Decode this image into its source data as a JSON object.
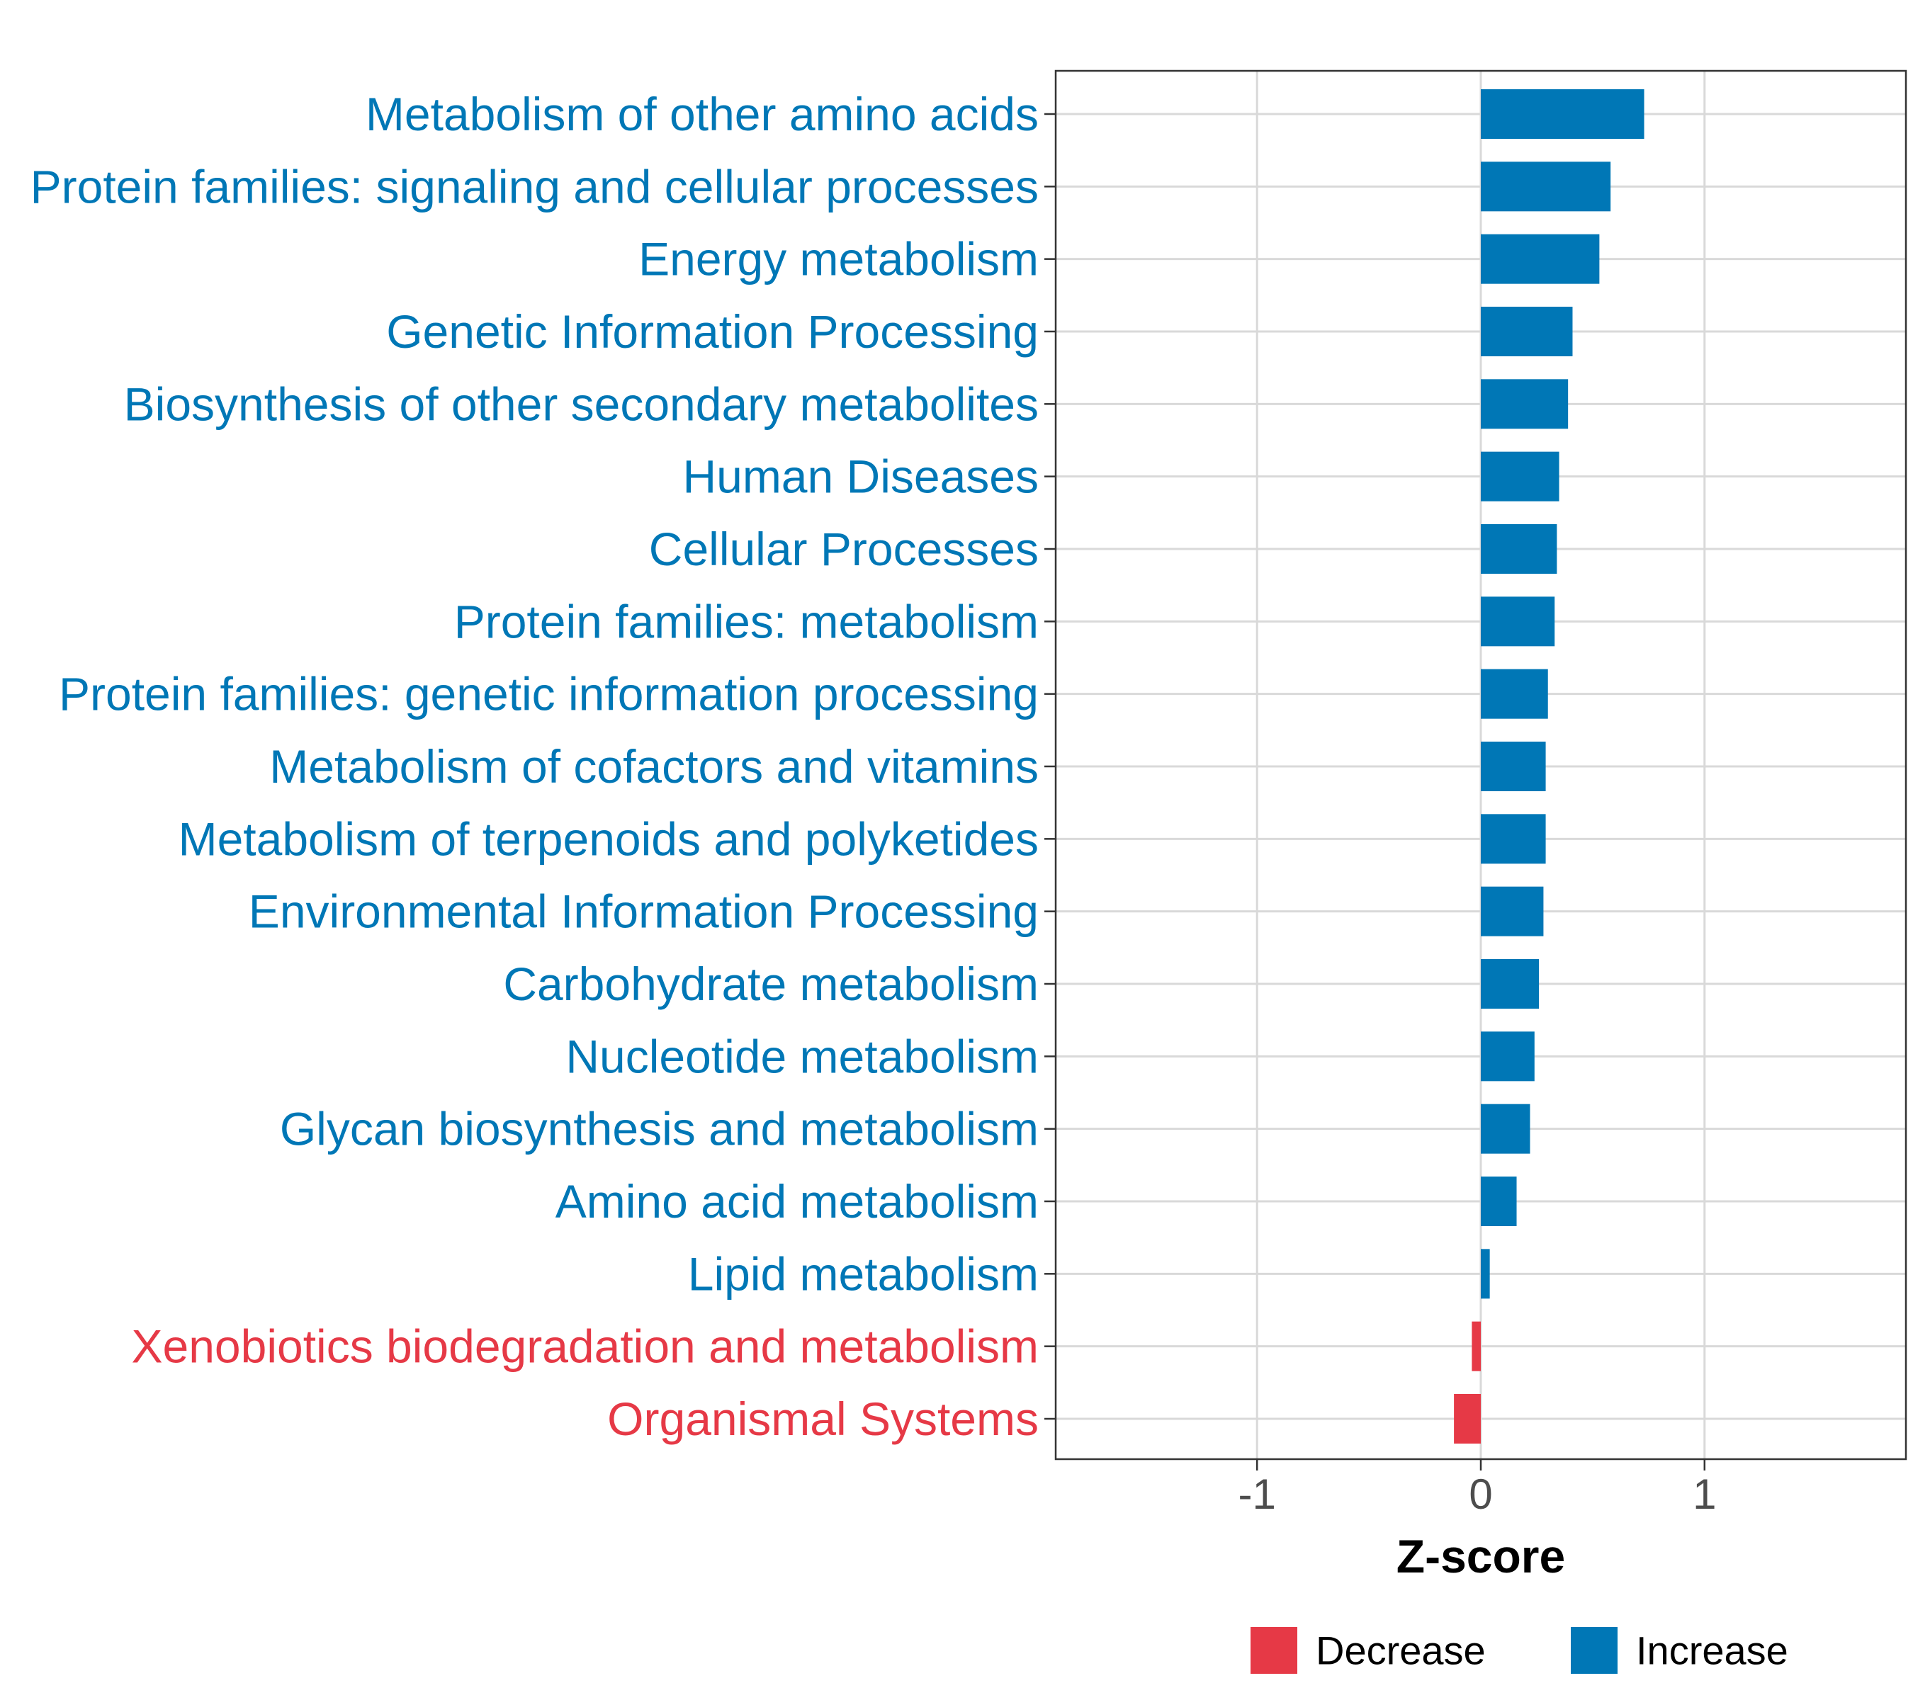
{
  "chart_data": {
    "type": "bar",
    "orientation": "horizontal",
    "categories": [
      "Metabolism of other amino acids",
      "Protein families: signaling and cellular processes",
      "Energy metabolism",
      "Genetic Information Processing",
      "Biosynthesis of other secondary metabolites",
      "Human Diseases",
      "Cellular Processes",
      "Protein families: metabolism",
      "Protein families: genetic information processing",
      "Metabolism of cofactors and vitamins",
      "Metabolism of terpenoids and polyketides",
      "Environmental Information Processing",
      "Carbohydrate metabolism",
      "Nucleotide metabolism",
      "Glycan biosynthesis and metabolism",
      "Amino acid metabolism",
      "Lipid metabolism",
      "Xenobiotics biodegradation and metabolism",
      "Organismal Systems"
    ],
    "values": [
      0.73,
      0.58,
      0.53,
      0.41,
      0.39,
      0.35,
      0.34,
      0.33,
      0.3,
      0.29,
      0.29,
      0.28,
      0.26,
      0.24,
      0.22,
      0.16,
      0.04,
      -0.04,
      -0.12
    ],
    "groups": [
      "Increase",
      "Increase",
      "Increase",
      "Increase",
      "Increase",
      "Increase",
      "Increase",
      "Increase",
      "Increase",
      "Increase",
      "Increase",
      "Increase",
      "Increase",
      "Increase",
      "Increase",
      "Increase",
      "Increase",
      "Decrease",
      "Decrease"
    ],
    "xlabel": "Z-score",
    "ylabel": "",
    "xlim": [
      -1.9,
      1.9
    ],
    "xticks": [
      -1,
      0,
      1
    ],
    "xtick_labels": [
      "-1",
      "0",
      "1"
    ],
    "grid": true,
    "legend": {
      "position": "bottom",
      "entries": [
        {
          "label": "Decrease",
          "color": "#e63946"
        },
        {
          "label": "Increase",
          "color": "#0077b6"
        }
      ]
    }
  },
  "colors": {
    "increase": "#0077b6",
    "decrease": "#e63946",
    "grid": "#d9d9d9",
    "panel_border": "#333333"
  }
}
